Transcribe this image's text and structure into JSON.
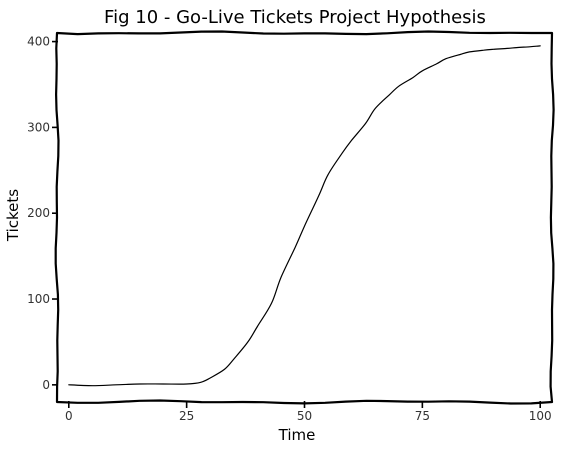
{
  "chart_data": {
    "type": "line",
    "title": "Fig 10 - Go-Live Tickets Project Hypothesis",
    "xlabel": "Time",
    "ylabel": "Tickets",
    "xlim": [
      -2.5,
      102.5
    ],
    "ylim": [
      -20,
      410
    ],
    "xticks": [
      0,
      25,
      50,
      75,
      100
    ],
    "yticks": [
      0,
      100,
      200,
      300,
      400
    ],
    "grid": false,
    "legend": "none",
    "style": "hand-drawn",
    "series": [
      {
        "color": "#000000",
        "x": [
          0,
          5,
          10,
          15,
          20,
          25,
          28,
          30,
          33,
          35,
          38,
          40,
          43,
          45,
          48,
          50,
          53,
          55,
          58,
          60,
          63,
          65,
          68,
          70,
          73,
          75,
          78,
          80,
          83,
          85,
          88,
          90,
          93,
          95,
          98,
          100
        ],
        "y": [
          0,
          -1,
          0,
          1,
          1,
          1,
          3,
          8,
          18,
          30,
          50,
          68,
          95,
          125,
          160,
          185,
          220,
          245,
          270,
          285,
          305,
          322,
          338,
          348,
          358,
          366,
          374,
          380,
          385,
          388,
          390,
          391,
          392,
          393,
          394,
          395
        ]
      }
    ]
  }
}
